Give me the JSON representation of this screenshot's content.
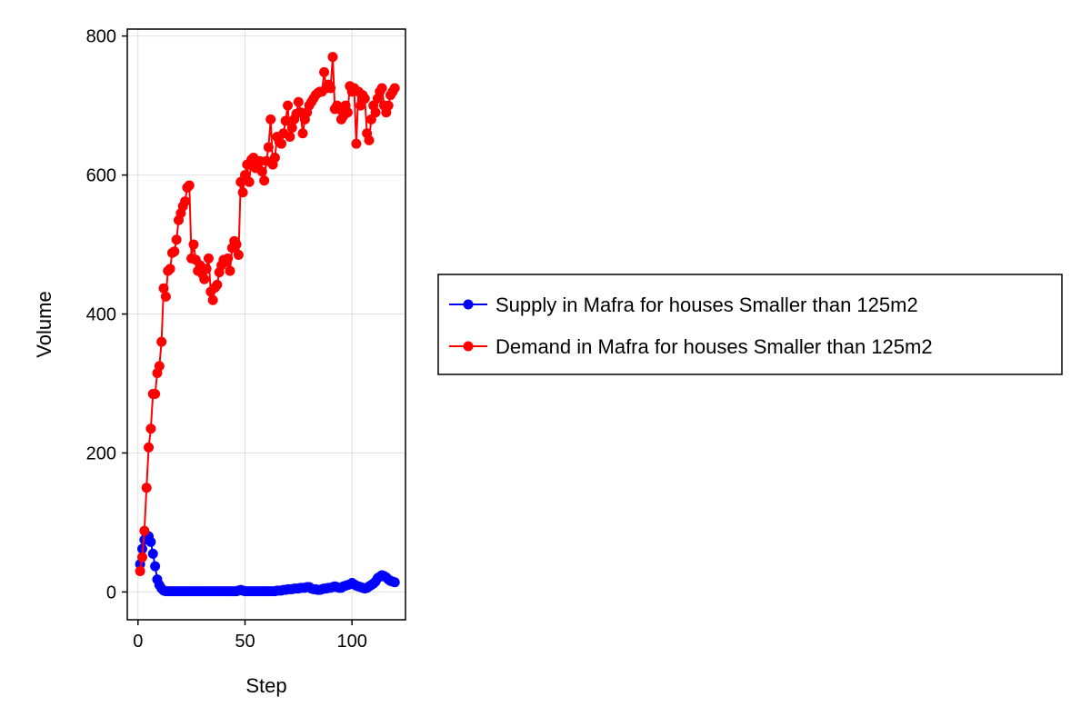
{
  "chart_data": {
    "type": "line",
    "xlabel": "Step",
    "ylabel": "Volume",
    "xlim": [
      -5,
      125
    ],
    "ylim": [
      -40,
      810
    ],
    "x_ticks": [
      0,
      50,
      100
    ],
    "y_ticks": [
      0,
      200,
      400,
      600,
      800
    ],
    "grid": true,
    "legend_position": "right",
    "series": [
      {
        "name": "Supply in Mafra for houses Smaller than 125m2",
        "color": "#0000ff",
        "marker": "circle",
        "x": [
          1,
          2,
          3,
          4,
          5,
          6,
          7,
          8,
          9,
          10,
          11,
          12,
          13,
          14,
          15,
          16,
          17,
          18,
          19,
          20,
          21,
          22,
          23,
          24,
          25,
          26,
          27,
          28,
          29,
          30,
          31,
          32,
          33,
          34,
          35,
          36,
          37,
          38,
          39,
          40,
          41,
          42,
          43,
          44,
          45,
          46,
          47,
          48,
          49,
          50,
          51,
          52,
          53,
          54,
          55,
          56,
          57,
          58,
          59,
          60,
          61,
          62,
          63,
          64,
          65,
          66,
          67,
          68,
          69,
          70,
          71,
          72,
          73,
          74,
          75,
          76,
          77,
          78,
          79,
          80,
          81,
          82,
          83,
          84,
          85,
          86,
          87,
          88,
          89,
          90,
          91,
          92,
          93,
          94,
          95,
          96,
          97,
          98,
          99,
          100,
          101,
          102,
          103,
          104,
          105,
          106,
          107,
          108,
          109,
          110,
          111,
          112,
          113,
          114,
          115,
          116,
          117,
          118,
          119,
          120
        ],
        "y": [
          40,
          62,
          75,
          82,
          80,
          72,
          55,
          37,
          18,
          10,
          5,
          2,
          1,
          1,
          1,
          1,
          1,
          1,
          1,
          1,
          1,
          1,
          1,
          1,
          1,
          1,
          1,
          1,
          1,
          1,
          1,
          1,
          1,
          1,
          1,
          1,
          1,
          1,
          1,
          1,
          1,
          1,
          1,
          1,
          1,
          1,
          2,
          3,
          2,
          1,
          1,
          1,
          1,
          1,
          1,
          1,
          1,
          1,
          1,
          1,
          1,
          1,
          1,
          1,
          2,
          2,
          2,
          3,
          3,
          4,
          4,
          4,
          5,
          5,
          5,
          6,
          6,
          6,
          7,
          7,
          5,
          4,
          4,
          3,
          3,
          4,
          5,
          5,
          6,
          6,
          7,
          8,
          7,
          6,
          6,
          8,
          9,
          10,
          11,
          13,
          11,
          9,
          8,
          7,
          6,
          5,
          6,
          8,
          10,
          12,
          15,
          20,
          22,
          24,
          23,
          21,
          18,
          16,
          15,
          14
        ]
      },
      {
        "name": "Demand in Mafra for houses Smaller than 125m2",
        "color": "#ff0000",
        "marker": "circle",
        "x": [
          1,
          2,
          3,
          4,
          5,
          6,
          7,
          8,
          9,
          10,
          11,
          12,
          13,
          14,
          15,
          16,
          17,
          18,
          19,
          20,
          21,
          22,
          23,
          24,
          25,
          26,
          27,
          28,
          29,
          30,
          31,
          32,
          33,
          34,
          35,
          36,
          37,
          38,
          39,
          40,
          41,
          42,
          43,
          44,
          45,
          46,
          47,
          48,
          49,
          50,
          51,
          52,
          53,
          54,
          55,
          56,
          57,
          58,
          59,
          60,
          61,
          62,
          63,
          64,
          65,
          66,
          67,
          68,
          69,
          70,
          71,
          72,
          73,
          74,
          75,
          76,
          77,
          78,
          79,
          80,
          81,
          82,
          83,
          84,
          85,
          86,
          87,
          88,
          89,
          90,
          91,
          92,
          93,
          94,
          95,
          96,
          97,
          98,
          99,
          100,
          101,
          102,
          103,
          104,
          105,
          106,
          107,
          108,
          109,
          110,
          111,
          112,
          113,
          114,
          115,
          116,
          117,
          118,
          119,
          120
        ],
        "y": [
          30,
          50,
          88,
          150,
          208,
          235,
          285,
          285,
          315,
          325,
          360,
          437,
          425,
          462,
          465,
          488,
          490,
          507,
          535,
          545,
          555,
          562,
          582,
          585,
          480,
          500,
          478,
          462,
          470,
          458,
          450,
          465,
          480,
          432,
          420,
          438,
          442,
          460,
          470,
          478,
          475,
          480,
          462,
          495,
          505,
          500,
          485,
          590,
          575,
          600,
          615,
          590,
          622,
          625,
          610,
          615,
          620,
          605,
          592,
          620,
          640,
          680,
          615,
          625,
          655,
          648,
          645,
          660,
          678,
          700,
          655,
          668,
          680,
          688,
          705,
          690,
          660,
          680,
          690,
          700,
          705,
          710,
          715,
          718,
          720,
          720,
          748,
          725,
          730,
          725,
          770,
          695,
          700,
          695,
          680,
          685,
          700,
          690,
          728,
          720,
          725,
          645,
          720,
          700,
          715,
          710,
          660,
          650,
          680,
          700,
          690,
          710,
          720,
          725,
          700,
          690,
          700,
          715,
          720,
          725
        ]
      }
    ]
  }
}
